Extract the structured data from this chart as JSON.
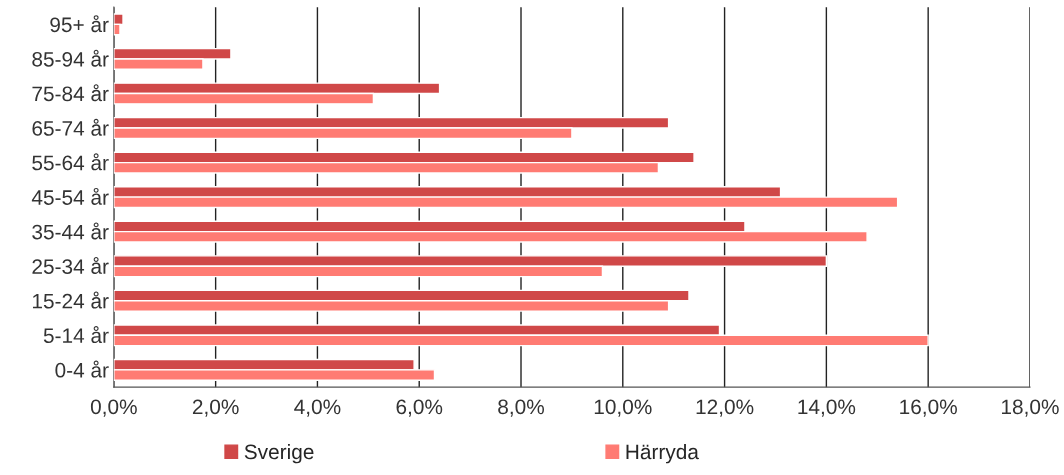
{
  "chart_data": {
    "type": "bar",
    "orientation": "horizontal",
    "categories": [
      "95+ år",
      "85-94 år",
      "75-84 år",
      "65-74 år",
      "55-64 år",
      "45-54 år",
      "35-44 år",
      "25-34 år",
      "15-24 år",
      "5-14 år",
      "0-4 år"
    ],
    "series": [
      {
        "name": "Sverige",
        "color": "#d04848",
        "values": [
          0.18,
          2.3,
          6.4,
          10.9,
          11.4,
          13.1,
          12.4,
          14.0,
          11.3,
          11.9,
          5.9
        ]
      },
      {
        "name": "Härryda",
        "color": "#ff7b73",
        "values": [
          0.12,
          1.75,
          5.1,
          9.0,
          10.7,
          15.4,
          14.8,
          9.6,
          10.9,
          16.0,
          6.3
        ]
      }
    ],
    "xlim": [
      0,
      18
    ],
    "xticks": [
      {
        "value": 0,
        "label": "0,0%"
      },
      {
        "value": 2,
        "label": "2,0%"
      },
      {
        "value": 4,
        "label": "4,0%"
      },
      {
        "value": 6,
        "label": "6,0%"
      },
      {
        "value": 8,
        "label": "8,0%"
      },
      {
        "value": 10,
        "label": "10,0%"
      },
      {
        "value": 12,
        "label": "12,0%"
      },
      {
        "value": 14,
        "label": "14,0%"
      },
      {
        "value": 16,
        "label": "16,0%"
      },
      {
        "value": 18,
        "label": "18,0%"
      }
    ],
    "grid": "x",
    "legend": "bottom"
  }
}
